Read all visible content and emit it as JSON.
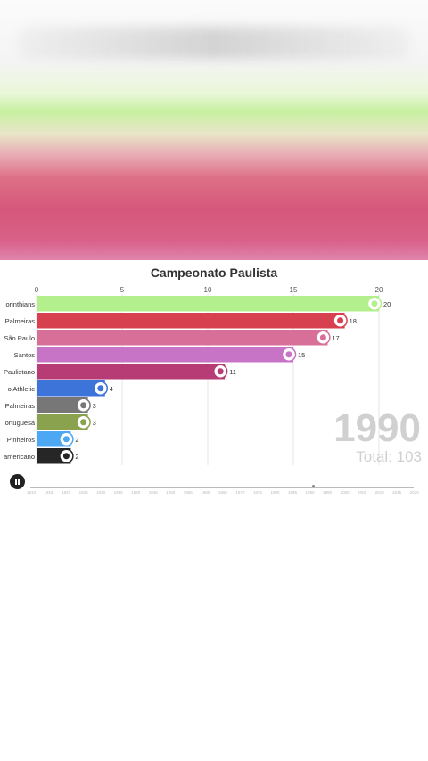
{
  "chart_data": {
    "type": "bar",
    "orientation": "horizontal",
    "title": "Campeonato Paulista",
    "xlim": [
      0,
      21
    ],
    "x_ticks": [
      "0",
      "5",
      "10",
      "15",
      "20"
    ],
    "categories": [
      "Corinthians",
      "Palmeiras",
      "São Paulo",
      "Santos",
      "Paulistano",
      "São Paulo Athletic",
      "Ponte Preta Palmeiras",
      "Portuguesa",
      "Germânia Pinheiros",
      "Americano"
    ],
    "category_labels": [
      "orinthians",
      "Palmeiras",
      "São Paulo",
      "Santos",
      "Paulistano",
      "o Athletic",
      "Palmeiras",
      "ortuguesa",
      "Pinheiros",
      "americano"
    ],
    "values": [
      20,
      18,
      17,
      15,
      11,
      4,
      3,
      3,
      2,
      2
    ],
    "colors": [
      "#b3f08d",
      "#d6404f",
      "#d86f98",
      "#c773c6",
      "#b73c76",
      "#3c74d9",
      "#777777",
      "#8aa24d",
      "#4da8f4",
      "#262626"
    ],
    "grid": true,
    "year": "1990",
    "total_label": "Total: 103"
  },
  "player": {
    "timeline_years": [
      "1910",
      "1915",
      "1920",
      "1925",
      "1930",
      "1935",
      "1940",
      "1945",
      "1950",
      "1955",
      "1960",
      "1965",
      "1970",
      "1975",
      "1980",
      "1985",
      "1990",
      "1995",
      "2000",
      "2005",
      "2010",
      "2015",
      "2020"
    ]
  }
}
